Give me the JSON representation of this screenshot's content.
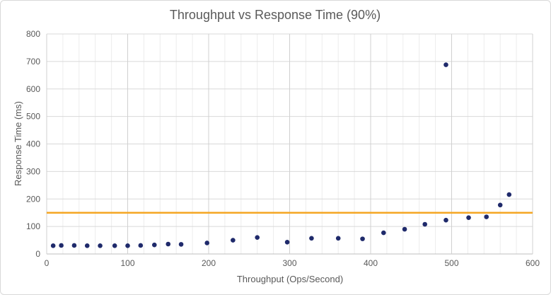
{
  "chart_data": {
    "type": "scatter",
    "title": "Throughput vs Response Time (90%)",
    "xlabel": "Throughput  (Ops/Second)",
    "ylabel": "Response Time  (ms)",
    "xlim": [
      0,
      600
    ],
    "ylim": [
      0,
      800
    ],
    "x_ticks": [
      "0",
      "100",
      "200",
      "300",
      "400",
      "500",
      "600"
    ],
    "y_ticks": [
      "0",
      "100",
      "200",
      "300",
      "400",
      "500",
      "600",
      "700",
      "800"
    ],
    "grid": true,
    "legend": "none",
    "threshold": {
      "y": 150,
      "color": "#f5a623"
    },
    "marker_color": "#1f2a6b",
    "series": [
      {
        "points": [
          [
            8,
            30
          ],
          [
            18,
            31
          ],
          [
            34,
            31
          ],
          [
            50,
            30
          ],
          [
            66,
            30
          ],
          [
            84,
            30
          ],
          [
            100,
            30
          ],
          [
            116,
            31
          ],
          [
            133,
            33
          ],
          [
            150,
            36
          ],
          [
            166,
            35
          ],
          [
            198,
            40
          ],
          [
            230,
            50
          ],
          [
            260,
            60
          ],
          [
            297,
            43
          ],
          [
            327,
            57
          ],
          [
            360,
            57
          ],
          [
            390,
            55
          ],
          [
            416,
            77
          ],
          [
            442,
            90
          ],
          [
            467,
            108
          ],
          [
            493,
            123
          ],
          [
            493,
            688
          ],
          [
            521,
            132
          ],
          [
            543,
            135
          ],
          [
            560,
            178
          ],
          [
            571,
            216
          ]
        ]
      }
    ]
  }
}
